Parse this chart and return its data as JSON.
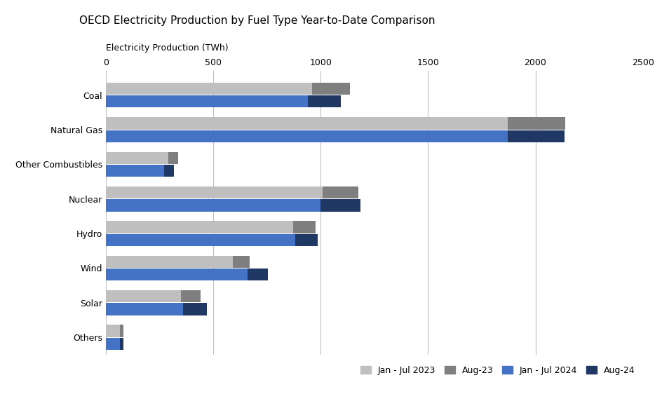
{
  "title": "OECD Electricity Production by Fuel Type Year-to-Date Comparison",
  "ylabel": "Electricity Production (TWh)",
  "categories": [
    "Coal",
    "Natural Gas",
    "Other Combustibles",
    "Nuclear",
    "Hydro",
    "Wind",
    "Solar",
    "Others"
  ],
  "series": {
    "Jan - Jul 2023": [
      960,
      1870,
      290,
      1010,
      870,
      590,
      350,
      65
    ],
    "Aug-23": [
      175,
      270,
      45,
      165,
      105,
      80,
      90,
      15
    ],
    "Jan - Jul 2024": [
      940,
      1870,
      270,
      1000,
      880,
      660,
      360,
      65
    ],
    "Aug-24": [
      155,
      265,
      45,
      185,
      105,
      95,
      110,
      15
    ]
  },
  "colors": {
    "Jan - Jul 2023": "#bfbfbf",
    "Aug-23": "#7f7f7f",
    "Jan - Jul 2024": "#4472c4",
    "Aug-24": "#1f3864"
  },
  "xlim": [
    0,
    2500
  ],
  "xticks": [
    0,
    500,
    1000,
    1500,
    2000,
    2500
  ],
  "bar_height": 0.35,
  "bar_gap": 0.02,
  "background_color": "#ffffff",
  "title_fontsize": 11,
  "axis_label_fontsize": 9,
  "tick_fontsize": 9,
  "legend_fontsize": 9
}
